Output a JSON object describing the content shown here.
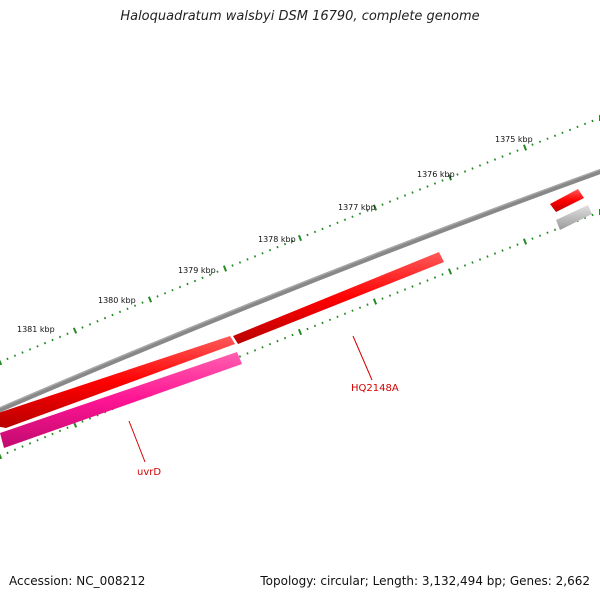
{
  "title": "Haloquadratum walsbyi DSM 16790, complete genome",
  "ticks": {
    "labels": [
      "1375 kbp",
      "1376 kbp",
      "1377 kbp",
      "1378 kbp",
      "1379 kbp",
      "1380 kbp",
      "1381 kbp"
    ],
    "color": "#228b22"
  },
  "backbone_color": "#7a7a7a",
  "features": {
    "genes": [
      {
        "id": "HQ2148A",
        "label": "HQ2148A",
        "color": "#ff0000"
      },
      {
        "id": "uvrD",
        "label": "uvrD",
        "color": "#ff1493"
      },
      {
        "id": "upper-gene",
        "label": "",
        "color": "#ff0000"
      }
    ],
    "other_colors": {
      "grey_feature": "#bdbdbd",
      "unlabeled_red": "#ff0000"
    }
  },
  "footer": {
    "accession": "Accession: NC_008212",
    "stats": "Topology: circular; Length: 3,132,494 bp; Genes: 2,662"
  }
}
